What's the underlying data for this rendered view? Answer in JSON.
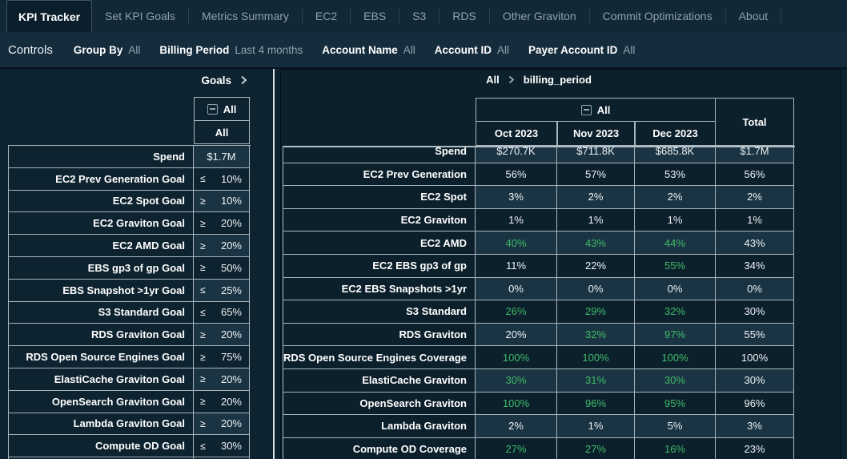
{
  "nav": {
    "tabs": [
      {
        "label": "KPI Tracker",
        "active": true
      },
      {
        "label": "Set KPI Goals",
        "active": false
      },
      {
        "label": "Metrics Summary",
        "active": false
      },
      {
        "label": "EC2",
        "active": false
      },
      {
        "label": "EBS",
        "active": false
      },
      {
        "label": "S3",
        "active": false
      },
      {
        "label": "RDS",
        "active": false
      },
      {
        "label": "Other Graviton",
        "active": false
      },
      {
        "label": "Commit Optimizations",
        "active": false
      },
      {
        "label": "About",
        "active": false
      }
    ]
  },
  "controls": {
    "title": "Controls",
    "filters": [
      {
        "label": "Group By",
        "value": "All"
      },
      {
        "label": "Billing Period",
        "value": "Last 4 months"
      },
      {
        "label": "Account Name",
        "value": "All"
      },
      {
        "label": "Account ID",
        "value": "All"
      },
      {
        "label": "Payer Account ID",
        "value": "All"
      }
    ]
  },
  "icons": {
    "collapse": "minus-square-icon",
    "chevron": "chevron-right-icon"
  },
  "goals_panel": {
    "title": "Goals",
    "column_group_label": "All",
    "column_label": "All",
    "rows": [
      {
        "label": "Spend",
        "op": "",
        "value": "$1.7M"
      },
      {
        "label": "EC2 Prev Generation Goal",
        "op": "≤",
        "value": "10%"
      },
      {
        "label": "EC2 Spot Goal",
        "op": "≥",
        "value": "10%"
      },
      {
        "label": "EC2 Graviton Goal",
        "op": "≥",
        "value": "20%"
      },
      {
        "label": "EC2 AMD Goal",
        "op": "≥",
        "value": "20%"
      },
      {
        "label": "EBS gp3 of gp Goal",
        "op": "≥",
        "value": "50%"
      },
      {
        "label": "EBS Snapshot >1yr Goal",
        "op": "≤",
        "value": "25%"
      },
      {
        "label": "S3 Standard Goal",
        "op": "≤",
        "value": "65%"
      },
      {
        "label": "RDS Graviton Goal",
        "op": "≥",
        "value": "20%"
      },
      {
        "label": "RDS Open Source Engines Goal",
        "op": "≥",
        "value": "75%"
      },
      {
        "label": "ElastiCache Graviton Goal",
        "op": "≥",
        "value": "20%"
      },
      {
        "label": "OpenSearch Graviton Goal",
        "op": "≥",
        "value": "20%"
      },
      {
        "label": "Lambda Graviton Goal",
        "op": "≥",
        "value": "20%"
      },
      {
        "label": "Compute OD Goal",
        "op": "≤",
        "value": "30%"
      }
    ]
  },
  "pivot_panel": {
    "breadcrumb": {
      "root": "All",
      "current": "billing_period"
    },
    "column_group_label": "All",
    "columns": [
      "Oct 2023",
      "Nov 2023",
      "Dec 2023"
    ],
    "total_label": "Total",
    "rows": [
      {
        "label": "Spend",
        "values": [
          "$270.7K",
          "$711.8K",
          "$685.8K",
          "$1.7M"
        ],
        "green": [
          false,
          false,
          false,
          false
        ]
      },
      {
        "label": "EC2 Prev Generation",
        "values": [
          "56%",
          "57%",
          "53%",
          "56%"
        ],
        "green": [
          false,
          false,
          false,
          false
        ]
      },
      {
        "label": "EC2 Spot",
        "values": [
          "3%",
          "2%",
          "2%",
          "2%"
        ],
        "green": [
          false,
          false,
          false,
          false
        ]
      },
      {
        "label": "EC2 Graviton",
        "values": [
          "1%",
          "1%",
          "1%",
          "1%"
        ],
        "green": [
          false,
          false,
          false,
          false
        ]
      },
      {
        "label": "EC2 AMD",
        "values": [
          "40%",
          "43%",
          "44%",
          "43%"
        ],
        "green": [
          true,
          true,
          true,
          false
        ]
      },
      {
        "label": "EC2 EBS gp3 of gp",
        "values": [
          "11%",
          "22%",
          "55%",
          "34%"
        ],
        "green": [
          false,
          false,
          true,
          false
        ]
      },
      {
        "label": "EC2 EBS Snapshots >1yr",
        "values": [
          "0%",
          "0%",
          "0%",
          "0%"
        ],
        "green": [
          false,
          false,
          false,
          false
        ]
      },
      {
        "label": "S3 Standard",
        "values": [
          "26%",
          "29%",
          "32%",
          "30%"
        ],
        "green": [
          true,
          true,
          true,
          false
        ]
      },
      {
        "label": "RDS Graviton",
        "values": [
          "20%",
          "32%",
          "97%",
          "55%"
        ],
        "green": [
          false,
          true,
          true,
          false
        ]
      },
      {
        "label": "RDS Open Source Engines Coverage",
        "values": [
          "100%",
          "100%",
          "100%",
          "100%"
        ],
        "green": [
          true,
          true,
          true,
          false
        ]
      },
      {
        "label": "ElastiCache Graviton",
        "values": [
          "30%",
          "31%",
          "30%",
          "30%"
        ],
        "green": [
          true,
          true,
          true,
          false
        ]
      },
      {
        "label": "OpenSearch Graviton",
        "values": [
          "100%",
          "96%",
          "95%",
          "96%"
        ],
        "green": [
          true,
          true,
          true,
          false
        ]
      },
      {
        "label": "Lambda Graviton",
        "values": [
          "2%",
          "1%",
          "5%",
          "3%"
        ],
        "green": [
          false,
          false,
          false,
          false
        ]
      },
      {
        "label": "Compute OD Coverage",
        "values": [
          "27%",
          "27%",
          "16%",
          "23%"
        ],
        "green": [
          true,
          true,
          true,
          false
        ]
      }
    ]
  },
  "colors": {
    "accent_green": "#3FBB68",
    "page_bg": "#0E2330",
    "border": "#A9B5BC",
    "zebra_light": "#1A3443"
  }
}
